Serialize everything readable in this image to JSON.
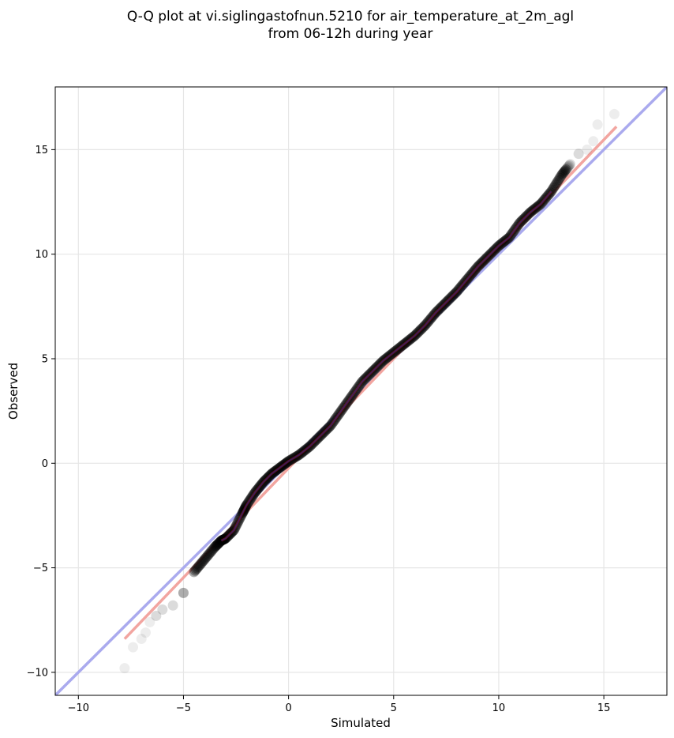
{
  "chart_data": {
    "type": "scatter",
    "title": [
      "Q-Q plot at vi.siglingastofnun.5210 for air_temperature_at_2m_agl",
      "from 06-12h during year"
    ],
    "xlabel": "Simulated",
    "ylabel": "Observed",
    "xlim": [
      -11.1,
      18.0
    ],
    "ylim": [
      -11.1,
      18.0
    ],
    "x_ticks": [
      -10,
      -5,
      0,
      5,
      10,
      15
    ],
    "y_ticks": [
      -10,
      -5,
      0,
      5,
      10,
      15
    ],
    "x_tick_labels": [
      "−10",
      "−5",
      "0",
      "5",
      "10",
      "15"
    ],
    "y_tick_labels": [
      "−10",
      "−5",
      "0",
      "5",
      "10",
      "15"
    ],
    "grid": true,
    "reference_line": {
      "name": "1:1",
      "color": "#aaaaee",
      "points": [
        [
          -11.1,
          -11.1
        ],
        [
          18.0,
          18.0
        ]
      ]
    },
    "fit_line": {
      "color": "#f2a5a0",
      "points": [
        [
          -7.8,
          -8.4
        ],
        [
          15.6,
          16.1
        ]
      ]
    },
    "qq_curve": [
      [
        -7.8,
        -9.8
      ],
      [
        -7.4,
        -8.8
      ],
      [
        -7.0,
        -8.4
      ],
      [
        -6.8,
        -8.1
      ],
      [
        -6.6,
        -7.6
      ],
      [
        -6.3,
        -7.3
      ],
      [
        -6.0,
        -7.0
      ],
      [
        -5.5,
        -6.8
      ],
      [
        -5.0,
        -6.2
      ],
      [
        -4.5,
        -5.2
      ],
      [
        -4.0,
        -4.6
      ],
      [
        -3.5,
        -4.0
      ],
      [
        -3.2,
        -3.7
      ],
      [
        -3.0,
        -3.6
      ],
      [
        -2.6,
        -3.2
      ],
      [
        -2.2,
        -2.4
      ],
      [
        -2.0,
        -2.0
      ],
      [
        -1.6,
        -1.4
      ],
      [
        -1.2,
        -0.9
      ],
      [
        -0.8,
        -0.5
      ],
      [
        -0.4,
        -0.2
      ],
      [
        0.0,
        0.1
      ],
      [
        0.5,
        0.4
      ],
      [
        1.0,
        0.8
      ],
      [
        1.5,
        1.3
      ],
      [
        2.0,
        1.8
      ],
      [
        2.5,
        2.5
      ],
      [
        3.0,
        3.2
      ],
      [
        3.5,
        3.9
      ],
      [
        4.0,
        4.4
      ],
      [
        4.5,
        4.9
      ],
      [
        5.0,
        5.3
      ],
      [
        5.5,
        5.7
      ],
      [
        6.0,
        6.1
      ],
      [
        6.5,
        6.6
      ],
      [
        7.0,
        7.2
      ],
      [
        7.5,
        7.7
      ],
      [
        8.0,
        8.2
      ],
      [
        8.5,
        8.8
      ],
      [
        9.0,
        9.4
      ],
      [
        9.5,
        9.9
      ],
      [
        10.0,
        10.4
      ],
      [
        10.5,
        10.8
      ],
      [
        11.0,
        11.5
      ],
      [
        11.5,
        12.0
      ],
      [
        12.0,
        12.4
      ],
      [
        12.5,
        13.0
      ],
      [
        13.0,
        13.8
      ],
      [
        13.4,
        14.3
      ],
      [
        13.8,
        14.8
      ],
      [
        14.2,
        15.0
      ],
      [
        14.5,
        15.4
      ],
      [
        14.7,
        16.2
      ],
      [
        15.5,
        16.7
      ]
    ],
    "point_color": "#000000",
    "line_colors": {
      "observed_curve": "#aa1111",
      "inner_curve": "#1a2a99"
    }
  }
}
